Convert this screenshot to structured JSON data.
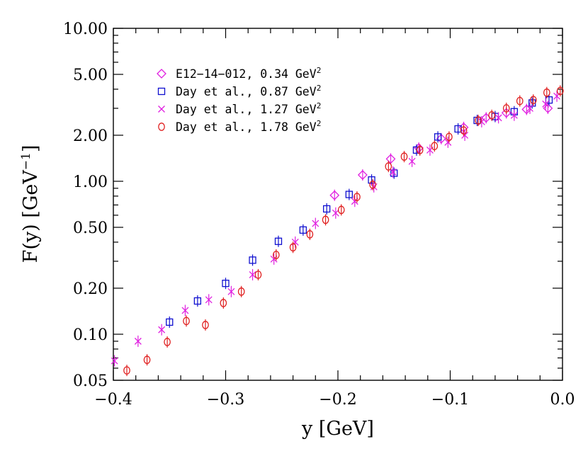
{
  "chart_data": {
    "type": "scatter",
    "xlabel": "y  [GeV]",
    "ylabel": "F(y)  [GeV",
    "ylabel_sup": "−1",
    "ylabel_close": "]",
    "xlim": [
      -0.4,
      0.0
    ],
    "ylim": [
      0.05,
      10.0
    ],
    "yscale": "log",
    "x_ticks": [
      -0.4,
      -0.3,
      -0.2,
      -0.1,
      0.0
    ],
    "x_tick_labels": [
      "−0.4",
      "−0.3",
      "−0.2",
      "−0.1",
      "0.0"
    ],
    "y_ticks": [
      0.05,
      0.1,
      0.2,
      0.5,
      1.0,
      2.0,
      5.0,
      10.0
    ],
    "y_tick_labels": [
      "0.05",
      "0.10",
      "0.20",
      "0.50",
      "1.00",
      "2.00",
      "5.00",
      "10.00"
    ],
    "grid": false,
    "legend_position": "top-left",
    "series": [
      {
        "name": "E12−14−012, 0.34 GeV",
        "name_sup": "2",
        "marker": "diamond",
        "color": "#e020e0",
        "points": [
          [
            -0.203,
            0.81
          ],
          [
            -0.178,
            1.1
          ],
          [
            -0.153,
            1.4
          ],
          [
            -0.128,
            1.65
          ],
          [
            -0.108,
            1.9
          ],
          [
            -0.088,
            2.25
          ],
          [
            -0.068,
            2.6
          ],
          [
            -0.05,
            2.8
          ],
          [
            -0.032,
            2.95
          ],
          [
            -0.013,
            3.0
          ]
        ]
      },
      {
        "name": "Day et al., 0.87 GeV",
        "name_sup": "2",
        "marker": "square",
        "color": "#1010d0",
        "points": [
          [
            -0.35,
            0.12
          ],
          [
            -0.325,
            0.165
          ],
          [
            -0.3,
            0.215
          ],
          [
            -0.276,
            0.305
          ],
          [
            -0.253,
            0.405
          ],
          [
            -0.231,
            0.48
          ],
          [
            -0.21,
            0.66
          ],
          [
            -0.19,
            0.82
          ],
          [
            -0.17,
            1.02
          ],
          [
            -0.15,
            1.13
          ],
          [
            -0.13,
            1.6
          ],
          [
            -0.111,
            1.95
          ],
          [
            -0.093,
            2.2
          ],
          [
            -0.076,
            2.5
          ],
          [
            -0.06,
            2.65
          ],
          [
            -0.043,
            2.85
          ],
          [
            -0.027,
            3.25
          ],
          [
            -0.012,
            3.4
          ]
        ]
      },
      {
        "name": "Day et al., 1.27 GeV",
        "name_sup": "2",
        "marker": "cross",
        "color": "#e020e0",
        "points": [
          [
            -0.399,
            0.067
          ],
          [
            -0.378,
            0.09
          ],
          [
            -0.357,
            0.107
          ],
          [
            -0.336,
            0.143
          ],
          [
            -0.315,
            0.168
          ],
          [
            -0.295,
            0.19
          ],
          [
            -0.276,
            0.245
          ],
          [
            -0.257,
            0.31
          ],
          [
            -0.238,
            0.4
          ],
          [
            -0.22,
            0.53
          ],
          [
            -0.202,
            0.62
          ],
          [
            -0.185,
            0.74
          ],
          [
            -0.168,
            0.92
          ],
          [
            -0.151,
            1.15
          ],
          [
            -0.134,
            1.35
          ],
          [
            -0.118,
            1.6
          ],
          [
            -0.102,
            1.8
          ],
          [
            -0.087,
            2.0
          ],
          [
            -0.072,
            2.45
          ],
          [
            -0.057,
            2.6
          ],
          [
            -0.043,
            2.7
          ],
          [
            -0.029,
            3.0
          ],
          [
            -0.015,
            3.2
          ],
          [
            -0.005,
            3.6
          ]
        ]
      },
      {
        "name": "Day et al., 1.78 GeV",
        "name_sup": "2",
        "marker": "circle",
        "color": "#e02020",
        "points": [
          [
            -0.388,
            0.058
          ],
          [
            -0.37,
            0.068
          ],
          [
            -0.352,
            0.089
          ],
          [
            -0.335,
            0.122
          ],
          [
            -0.318,
            0.115
          ],
          [
            -0.302,
            0.16
          ],
          [
            -0.286,
            0.19
          ],
          [
            -0.271,
            0.245
          ],
          [
            -0.255,
            0.33
          ],
          [
            -0.24,
            0.37
          ],
          [
            -0.225,
            0.45
          ],
          [
            -0.211,
            0.56
          ],
          [
            -0.197,
            0.65
          ],
          [
            -0.183,
            0.79
          ],
          [
            -0.169,
            0.95
          ],
          [
            -0.155,
            1.25
          ],
          [
            -0.141,
            1.45
          ],
          [
            -0.127,
            1.6
          ],
          [
            -0.114,
            1.7
          ],
          [
            -0.101,
            1.95
          ],
          [
            -0.088,
            2.15
          ],
          [
            -0.075,
            2.5
          ],
          [
            -0.063,
            2.7
          ],
          [
            -0.05,
            3.0
          ],
          [
            -0.038,
            3.35
          ],
          [
            -0.026,
            3.4
          ],
          [
            -0.014,
            3.8
          ],
          [
            -0.002,
            3.9
          ]
        ]
      }
    ]
  }
}
